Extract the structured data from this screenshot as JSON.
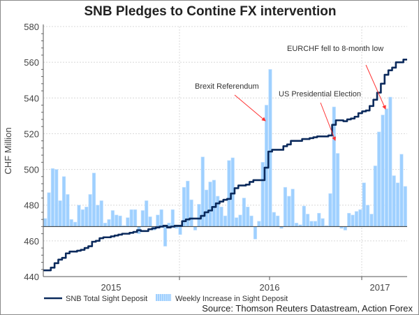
{
  "chart_data": {
    "type": "bar+line",
    "title": "SNB Pledges to Contine FX intervention",
    "ylabel": "CHF Million",
    "xlabel": "",
    "ylim": [
      440,
      580
    ],
    "yticks": [
      440,
      460,
      480,
      500,
      520,
      540,
      560,
      580
    ],
    "xtick_labels": [
      "2015",
      "2016",
      "2017"
    ],
    "grid": true,
    "bar_baseline": 468,
    "legend_placement": "bottom",
    "series": [
      {
        "name": "SNB Total Sight Deposit",
        "type": "line",
        "color": "#0b2a5c",
        "values": [
          443.5,
          443.5,
          445,
          447.5,
          449.5,
          450.5,
          453,
          454,
          454,
          454.5,
          455,
          456,
          457,
          459.5,
          460,
          461.5,
          462,
          462,
          462.5,
          463,
          463.5,
          464,
          464,
          464.5,
          465,
          466,
          465.5,
          465.5,
          466.5,
          467,
          467.5,
          468,
          468.5,
          467.5,
          468,
          468.5,
          468.5,
          471,
          472,
          472.5,
          472.5,
          472.5,
          474,
          476,
          477,
          479,
          481,
          482,
          483,
          483.5,
          486.5,
          489.5,
          491,
          491,
          491.5,
          493,
          494,
          494,
          494,
          501,
          510,
          511,
          511,
          511,
          513,
          514,
          516,
          516,
          516,
          517,
          517,
          517.5,
          518,
          518.5,
          518.5,
          518.5,
          519,
          525,
          527.5,
          527.5,
          527,
          528,
          528.5,
          529.5,
          531.5,
          532.5,
          533,
          535.5,
          539,
          543,
          548,
          553,
          555.5,
          557,
          560,
          560,
          561.5
        ]
      },
      {
        "name": "Weekly Increase in Sight Deposit",
        "type": "bar",
        "color": "#9fd0ff",
        "values": [
          472.5,
          487,
          500.5,
          500,
          482.5,
          496,
          486,
          472,
          470.5,
          480,
          477.5,
          479,
          486,
          498,
          480,
          482.5,
          470,
          472,
          477,
          474.5,
          474,
          468.5,
          473,
          477.5,
          477.5,
          464,
          477,
          482.5,
          473.5,
          466,
          474.5,
          477.5,
          457,
          470,
          477.5,
          467,
          463.5,
          490,
          493.5,
          483,
          466,
          480.5,
          507,
          488.5,
          493,
          494,
          485,
          479,
          474,
          505,
          506.5,
          473,
          474.5,
          484,
          479,
          474,
          461,
          471,
          504,
          536,
          556,
          476,
          474,
          467,
          490,
          485,
          489,
          470,
          469,
          479.5,
          475,
          471,
          471,
          475.5,
          472.5,
          468.5,
          486.5,
          535,
          509,
          467,
          466,
          475.5,
          474.5,
          476.5,
          477.5,
          492.5,
          480,
          475,
          502,
          521,
          530.5,
          534,
          540.5,
          496.5,
          492.5,
          508.5,
          490.5
        ]
      }
    ],
    "annotations": [
      {
        "text": "Brexit Referendum",
        "arrow_color": "#ff3333"
      },
      {
        "text": "US Presidential Election",
        "arrow_color": "#ff3333"
      },
      {
        "text": "EURCHF fell to 8-month low",
        "arrow_color": "#ff3333"
      }
    ],
    "source": "Source: Thomson Reuters Datastream, Action Forex"
  }
}
